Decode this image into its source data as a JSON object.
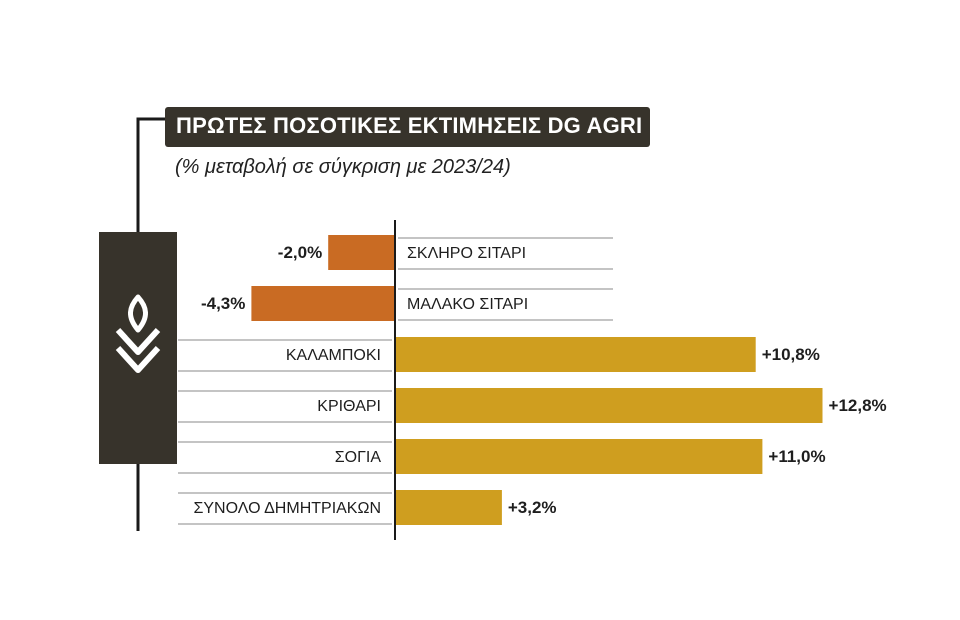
{
  "title": "ΠΡΩΤΕΣ ΠΟΣΟΤΙΚΕΣ ΕΚΤΙΜΗΣΕΙΣ DG AGRI",
  "subtitle": "(% μεταβολή σε σύγκριση με 2023/24)",
  "icon": "wheat-icon",
  "colors": {
    "negative": "#c96b23",
    "positive": "#cf9e1f",
    "dark": "#37332b",
    "rule": "#8a8a8a"
  },
  "chart_data": {
    "type": "bar",
    "orientation": "horizontal",
    "title": "ΠΡΩΤΕΣ ΠΟΣΟΤΙΚΕΣ ΕΚΤΙΜΗΣΕΙΣ DG AGRI",
    "subtitle": "(% μεταβολή σε σύγκριση με 2023/24)",
    "categories": [
      "ΣΚΛΗΡΟ ΣΙΤΑΡΙ",
      "ΜΑΛΑΚΟ ΣΙΤΑΡΙ",
      "ΚΑΛΑΜΠΟΚΙ",
      "ΚΡΙΘΑΡΙ",
      "ΣΟΓΙΑ",
      "ΣΥΝΟΛΟ ΔΗΜΗΤΡΙΑΚΩΝ"
    ],
    "values": [
      -2.0,
      -4.3,
      10.8,
      12.8,
      11.0,
      3.2
    ],
    "value_labels": [
      "-2,0%",
      "-4,3%",
      "+10,8%",
      "+12,8%",
      "+11,0%",
      "+3,2%"
    ],
    "grid": false,
    "legend": "none"
  }
}
